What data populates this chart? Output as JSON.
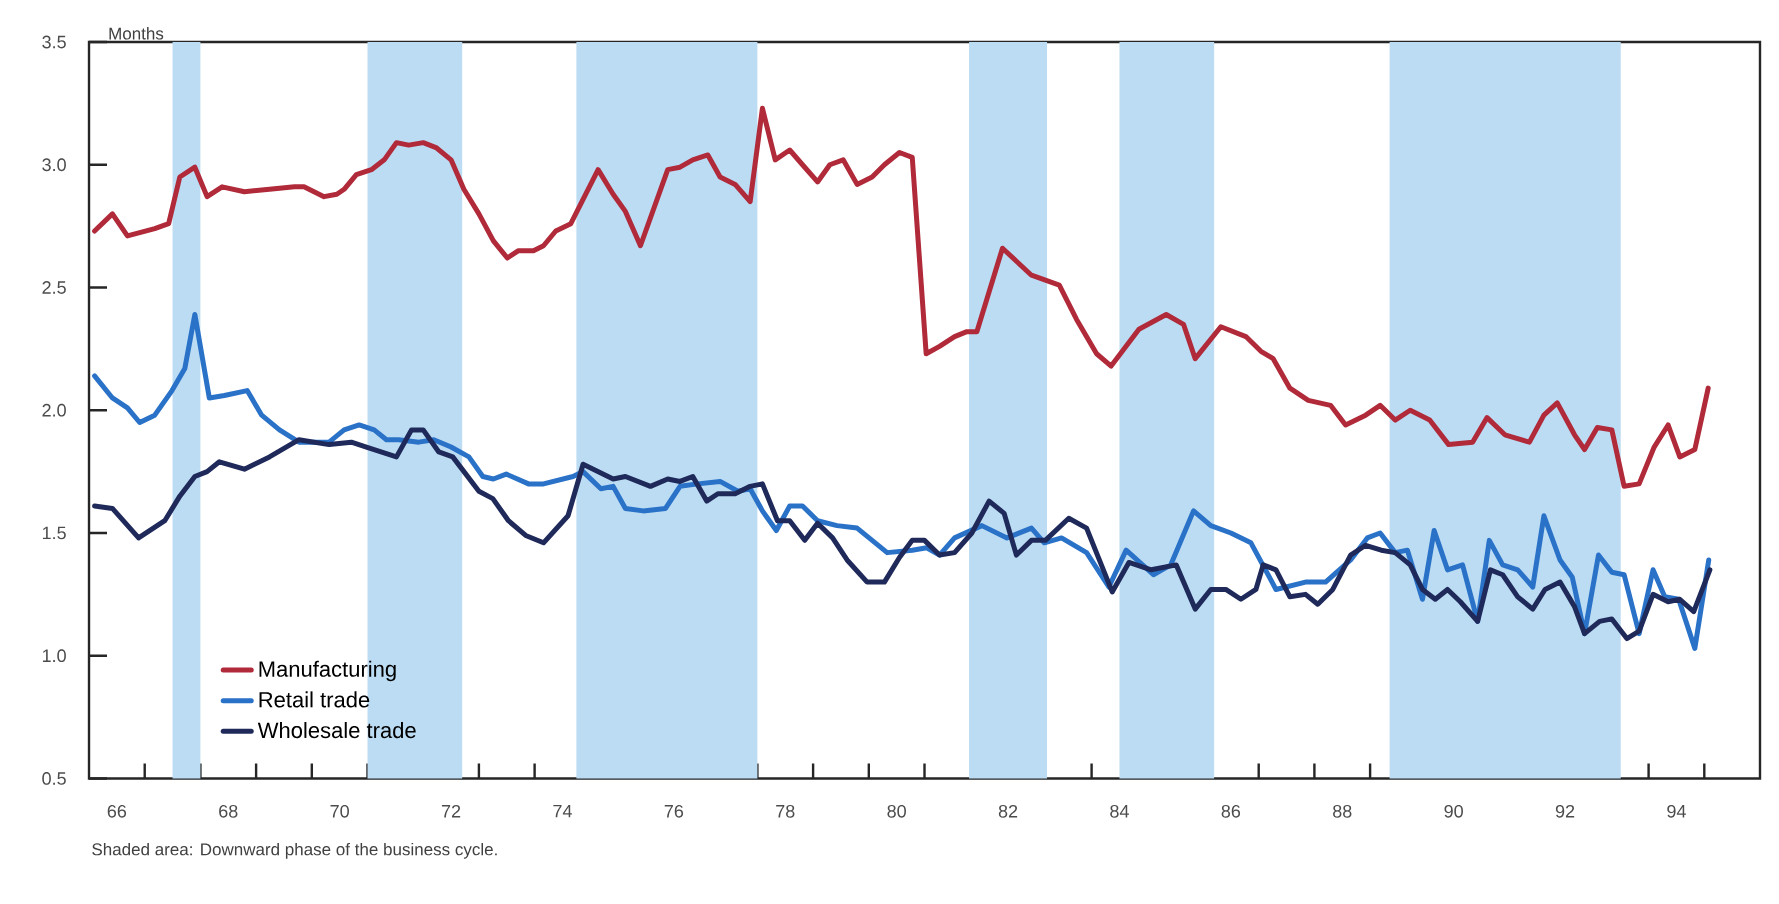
{
  "chart_data": {
    "type": "line",
    "ylabel": "Months",
    "annotations": [
      "Shaded area: Downward phase of the business cycle."
    ],
    "xlim": [
      65.5,
      95.5
    ],
    "ylim": [
      0.5,
      3.5
    ],
    "xticks": [
      66,
      68,
      70,
      72,
      74,
      76,
      78,
      80,
      82,
      84,
      86,
      88,
      90,
      92,
      94,
      {
        "value": 66.5,
        "label": null
      },
      {
        "value": 67.5,
        "label": null
      },
      {
        "value": 68.5,
        "label": null
      },
      {
        "value": 69.5,
        "label": null
      },
      {
        "value": 70.5,
        "label": null
      },
      {
        "value": 71.5,
        "label": null
      },
      {
        "value": 72.5,
        "label": null
      },
      {
        "value": 73.5,
        "label": null
      },
      {
        "value": 74.5,
        "label": null
      },
      {
        "value": 75.5,
        "label": null
      },
      {
        "value": 76.5,
        "label": null
      },
      {
        "value": 77.5,
        "label": null
      },
      {
        "value": 78.5,
        "label": null
      },
      {
        "value": 79.5,
        "label": null
      },
      {
        "value": 80.5,
        "label": null
      },
      {
        "value": 81.5,
        "label": null
      },
      {
        "value": 82.5,
        "label": null
      },
      {
        "value": 83.5,
        "label": null
      },
      {
        "value": 84.5,
        "label": null
      },
      {
        "value": 85.5,
        "label": null
      },
      {
        "value": 86.5,
        "label": null
      },
      {
        "value": 87.5,
        "label": null
      },
      {
        "value": 88.5,
        "label": null
      },
      {
        "value": 89.5,
        "label": null
      },
      {
        "value": 90.5,
        "label": null
      },
      {
        "value": 91.5,
        "label": null
      },
      {
        "value": 92.5,
        "label": null
      },
      {
        "value": 93.5,
        "label": null
      },
      {
        "value": 94.5,
        "label": null
      }
    ],
    "yticks": [
      0.5,
      {
        "value": 1,
        "label": "1.0"
      },
      1.5,
      {
        "value": 2,
        "label": "2.0"
      },
      2.5,
      {
        "value": 3,
        "label": "3.0"
      },
      3.5
    ],
    "legend": "bottom left",
    "bands": [
      {
        "axis": "x",
        "from": 67.0,
        "to": 67.5,
        "color": "#bcdcf3"
      },
      {
        "axis": "x",
        "from": 70.5,
        "to": 72.2,
        "color": "#bcdcf3"
      },
      {
        "axis": "x",
        "from": 74.25,
        "to": 77.5,
        "color": "#bcdcf3"
      },
      {
        "axis": "x",
        "from": 81.3,
        "to": 82.7,
        "color": "#bcdcf3"
      },
      {
        "axis": "x",
        "from": 84.0,
        "to": 85.7,
        "color": "#bcdcf3"
      },
      {
        "axis": "x",
        "from": 88.85,
        "to": 93.0,
        "color": "#bcdcf3"
      }
    ],
    "series": [
      {
        "name": "Manufacturing",
        "color": "#b02a3a",
        "x": [
          65.6,
          65.92,
          66.19,
          66.68,
          66.93,
          67.13,
          67.4,
          67.62,
          67.89,
          68.29,
          68.74,
          69.19,
          69.36,
          69.72,
          69.95,
          70.08,
          70.3,
          70.57,
          70.8,
          71.02,
          71.24,
          71.5,
          71.73,
          72.0,
          72.23,
          72.5,
          72.76,
          73.01,
          73.21,
          73.48,
          73.66,
          73.88,
          74.15,
          74.64,
          74.91,
          75.13,
          75.4,
          75.89,
          76.11,
          76.34,
          76.61,
          76.83,
          77.1,
          77.37,
          77.59,
          77.82,
          78.08,
          78.31,
          78.58,
          78.8,
          79.04,
          79.29,
          79.56,
          79.78,
          80.05,
          80.28,
          80.53,
          80.77,
          81.04,
          81.26,
          81.44,
          81.9,
          82.42,
          82.92,
          83.23,
          83.59,
          83.85,
          84.35,
          84.84,
          85.15,
          85.36,
          85.82,
          86.27,
          86.54,
          86.76,
          87.06,
          87.39,
          87.79,
          88.06,
          88.42,
          88.68,
          88.95,
          89.22,
          89.57,
          89.91,
          90.34,
          90.6,
          90.92,
          91.36,
          91.62,
          91.86,
          92.17,
          92.35,
          92.58,
          92.84,
          93.06,
          93.33,
          93.6,
          93.85,
          94.06,
          94.33,
          94.57
        ],
        "values": [
          2.73,
          2.8,
          2.71,
          2.74,
          2.76,
          2.95,
          2.99,
          2.87,
          2.91,
          2.89,
          2.9,
          2.91,
          2.91,
          2.87,
          2.88,
          2.9,
          2.96,
          2.98,
          3.02,
          3.09,
          3.08,
          3.09,
          3.07,
          3.02,
          2.9,
          2.8,
          2.69,
          2.62,
          2.65,
          2.65,
          2.67,
          2.73,
          2.76,
          2.98,
          2.88,
          2.81,
          2.67,
          2.98,
          2.99,
          3.02,
          3.04,
          2.95,
          2.92,
          2.85,
          3.23,
          3.02,
          3.06,
          3.0,
          2.93,
          3.0,
          3.02,
          2.92,
          2.95,
          3.0,
          3.05,
          3.03,
          2.23,
          2.26,
          2.3,
          2.32,
          2.32,
          2.66,
          2.55,
          2.51,
          2.37,
          2.23,
          2.18,
          2.33,
          2.39,
          2.35,
          2.21,
          2.34,
          2.3,
          2.24,
          2.21,
          2.09,
          2.04,
          2.02,
          1.94,
          1.98,
          2.02,
          1.96,
          2.0,
          1.96,
          1.86,
          1.87,
          1.97,
          1.9,
          1.87,
          1.98,
          2.03,
          1.9,
          1.84,
          1.93,
          1.92,
          1.69,
          1.7,
          1.85,
          1.94,
          1.81,
          1.84,
          2.09
        ]
      },
      {
        "name": "Retail trade",
        "color": "#2a72c8",
        "x": [
          65.6,
          65.92,
          66.19,
          66.41,
          66.68,
          66.99,
          67.22,
          67.4,
          67.66,
          67.93,
          68.34,
          68.6,
          68.92,
          69.27,
          69.81,
          70.08,
          70.35,
          70.62,
          70.84,
          71.06,
          71.42,
          71.69,
          72.0,
          72.32,
          72.57,
          72.76,
          72.99,
          73.39,
          73.66,
          74.19,
          74.37,
          74.69,
          74.91,
          75.13,
          75.45,
          75.85,
          76.11,
          76.43,
          76.83,
          77.15,
          77.37,
          77.59,
          77.84,
          78.08,
          78.31,
          78.58,
          78.93,
          79.29,
          79.83,
          80.28,
          80.54,
          80.77,
          81.04,
          81.53,
          81.98,
          82.42,
          82.65,
          82.96,
          83.41,
          83.81,
          84.12,
          84.61,
          84.92,
          85.33,
          85.64,
          86.0,
          86.36,
          86.81,
          87.34,
          87.7,
          88.15,
          88.45,
          88.68,
          88.95,
          89.17,
          89.44,
          89.65,
          89.89,
          90.16,
          90.43,
          90.64,
          90.88,
          91.15,
          91.42,
          91.62,
          91.91,
          92.13,
          92.35,
          92.6,
          92.84,
          93.06,
          93.33,
          93.58,
          93.79,
          94.04,
          94.33,
          94.58
        ],
        "values": [
          2.14,
          2.05,
          2.01,
          1.95,
          1.98,
          2.08,
          2.17,
          2.39,
          2.05,
          2.06,
          2.08,
          1.98,
          1.92,
          1.87,
          1.87,
          1.92,
          1.94,
          1.92,
          1.88,
          1.88,
          1.87,
          1.88,
          1.85,
          1.81,
          1.73,
          1.72,
          1.74,
          1.7,
          1.7,
          1.73,
          1.75,
          1.68,
          1.69,
          1.6,
          1.59,
          1.6,
          1.69,
          1.7,
          1.71,
          1.67,
          1.68,
          1.59,
          1.51,
          1.61,
          1.61,
          1.55,
          1.53,
          1.52,
          1.42,
          1.43,
          1.44,
          1.41,
          1.48,
          1.53,
          1.48,
          1.52,
          1.46,
          1.48,
          1.42,
          1.28,
          1.43,
          1.33,
          1.37,
          1.59,
          1.53,
          1.5,
          1.46,
          1.27,
          1.3,
          1.3,
          1.39,
          1.48,
          1.5,
          1.42,
          1.43,
          1.23,
          1.51,
          1.35,
          1.37,
          1.14,
          1.47,
          1.37,
          1.35,
          1.28,
          1.57,
          1.39,
          1.32,
          1.09,
          1.41,
          1.34,
          1.33,
          1.09,
          1.35,
          1.24,
          1.23,
          1.03,
          1.39
        ]
      },
      {
        "name": "Wholesale trade",
        "color": "#1f2a5a",
        "x": [
          65.6,
          65.92,
          66.39,
          66.86,
          67.13,
          67.4,
          67.62,
          67.84,
          68.29,
          68.74,
          69.27,
          69.81,
          70.21,
          70.48,
          71.02,
          71.29,
          71.5,
          71.78,
          72.03,
          72.5,
          72.75,
          73.03,
          73.34,
          73.66,
          74.1,
          74.37,
          74.64,
          74.91,
          75.13,
          75.58,
          75.89,
          76.11,
          76.34,
          76.59,
          76.79,
          77.1,
          77.37,
          77.59,
          77.86,
          78.08,
          78.35,
          78.58,
          78.85,
          79.11,
          79.47,
          79.78,
          80.05,
          80.28,
          80.5,
          80.77,
          81.04,
          81.35,
          81.66,
          81.93,
          82.15,
          82.42,
          82.67,
          83.09,
          83.41,
          83.87,
          84.17,
          84.57,
          85.02,
          85.36,
          85.64,
          85.91,
          86.18,
          86.45,
          86.58,
          86.81,
          87.06,
          87.34,
          87.56,
          87.83,
          88.15,
          88.42,
          88.7,
          88.95,
          89.22,
          89.44,
          89.67,
          89.89,
          90.12,
          90.43,
          90.66,
          90.88,
          91.15,
          91.42,
          91.64,
          91.91,
          92.17,
          92.35,
          92.62,
          92.84,
          93.11,
          93.33,
          93.58,
          93.85,
          94.06,
          94.31,
          94.6
        ],
        "values": [
          1.61,
          1.6,
          1.48,
          1.55,
          1.65,
          1.73,
          1.75,
          1.79,
          1.76,
          1.81,
          1.88,
          1.86,
          1.87,
          1.85,
          1.81,
          1.92,
          1.92,
          1.83,
          1.81,
          1.67,
          1.64,
          1.55,
          1.49,
          1.46,
          1.57,
          1.78,
          1.75,
          1.72,
          1.73,
          1.69,
          1.72,
          1.71,
          1.73,
          1.63,
          1.66,
          1.66,
          1.69,
          1.7,
          1.55,
          1.55,
          1.47,
          1.54,
          1.48,
          1.39,
          1.3,
          1.3,
          1.4,
          1.47,
          1.47,
          1.41,
          1.42,
          1.5,
          1.63,
          1.58,
          1.41,
          1.47,
          1.47,
          1.56,
          1.52,
          1.26,
          1.38,
          1.35,
          1.37,
          1.19,
          1.27,
          1.27,
          1.23,
          1.27,
          1.37,
          1.35,
          1.24,
          1.25,
          1.21,
          1.27,
          1.41,
          1.45,
          1.43,
          1.42,
          1.37,
          1.27,
          1.23,
          1.27,
          1.22,
          1.14,
          1.35,
          1.33,
          1.24,
          1.19,
          1.27,
          1.3,
          1.2,
          1.09,
          1.14,
          1.15,
          1.07,
          1.1,
          1.25,
          1.22,
          1.23,
          1.18,
          1.35
        ]
      }
    ]
  }
}
